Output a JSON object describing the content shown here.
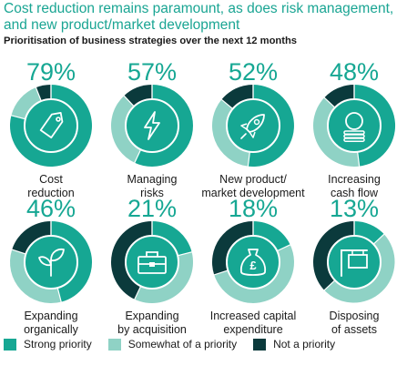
{
  "title": "Cost reduction remains paramount, as does risk management, and new product/market development",
  "subtitle": "Prioritisation of business strategies over the next 12 months",
  "colors": {
    "strong": "#16a793",
    "somewhat": "#8fd2c5",
    "not": "#0b3a3c",
    "icon": "#ffffff",
    "percent": "#16a793"
  },
  "chart_data": {
    "type": "pie",
    "series_names": [
      "Strong priority",
      "Somewhat of a priority",
      "Not a priority"
    ],
    "items": [
      {
        "category": "Cost\nreduction",
        "percent_label": "79%",
        "icon": "tag-icon",
        "strong": 79,
        "somewhat": 15,
        "not": 6
      },
      {
        "category": "Managing\nrisks",
        "percent_label": "57%",
        "icon": "lightning-icon",
        "strong": 57,
        "somewhat": 31,
        "not": 12
      },
      {
        "category": "New product/\nmarket development",
        "percent_label": "52%",
        "icon": "rocket-icon",
        "strong": 52,
        "somewhat": 34,
        "not": 14
      },
      {
        "category": "Increasing\ncash flow",
        "percent_label": "48%",
        "icon": "coins-icon",
        "strong": 48,
        "somewhat": 39,
        "not": 13
      },
      {
        "category": "Expanding\norganically",
        "percent_label": "46%",
        "icon": "sprout-icon",
        "strong": 46,
        "somewhat": 34,
        "not": 20
      },
      {
        "category": "Expanding\nby acquisition",
        "percent_label": "21%",
        "icon": "toolbox-icon",
        "strong": 21,
        "somewhat": 36,
        "not": 43
      },
      {
        "category": "Increased capital\nexpenditure",
        "percent_label": "18%",
        "icon": "money-bag-icon",
        "strong": 18,
        "somewhat": 52,
        "not": 30
      },
      {
        "category": "Disposing\nof assets",
        "percent_label": "13%",
        "icon": "sign-icon",
        "strong": 13,
        "somewhat": 50,
        "not": 37
      }
    ]
  },
  "legend": [
    {
      "label": "Strong priority",
      "color": "#16a793"
    },
    {
      "label": "Somewhat of a priority",
      "color": "#8fd2c5"
    },
    {
      "label": "Not a priority",
      "color": "#0b3a3c"
    }
  ]
}
